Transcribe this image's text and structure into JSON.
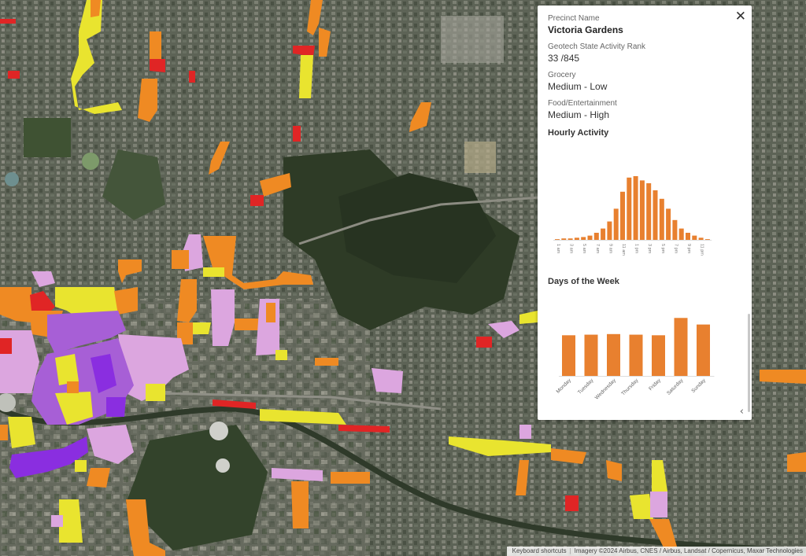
{
  "panel": {
    "close_symbol": "✕",
    "fields": [
      {
        "label": "Precinct Name",
        "value": "Victoria Gardens"
      },
      {
        "label": "Geotech State Activity Rank",
        "value": "33 /845"
      },
      {
        "label": "Grocery",
        "value": "Medium - Low"
      },
      {
        "label": "Food/Entertainment",
        "value": "Medium - High"
      }
    ],
    "hourly_title": "Hourly Activity",
    "days_title": "Days of the Week",
    "collapse_symbol": "‹"
  },
  "colors": {
    "bar": "#e8802f",
    "zone_red": "#e02525",
    "zone_orange": "#ef8a23",
    "zone_yellow": "#e9e42f",
    "zone_pink": "#dca6df",
    "zone_purple": "#a75fd6",
    "zone_violet": "#8a2ee0"
  },
  "attribution": {
    "shortcuts": "Keyboard shortcuts",
    "imagery": "Imagery ©2024 Airbus, CNES / Airbus, Landsat / Copernicus, Maxar Technologies"
  },
  "chart_data": [
    {
      "type": "bar",
      "title": "Hourly Activity",
      "categories": [
        "1 am",
        "2 am",
        "3 am",
        "4 am",
        "5 am",
        "6 am",
        "7 am",
        "8 am",
        "9 am",
        "10 am",
        "11 am",
        "12 pm",
        "1 pm",
        "2 pm",
        "3 pm",
        "4 pm",
        "5 pm",
        "6 pm",
        "7 pm",
        "8 pm",
        "9 pm",
        "10 pm",
        "11 pm",
        "12 am"
      ],
      "tick_labels": [
        "1 am",
        "3 am",
        "5 am",
        "7 am",
        "9 am",
        "11 am",
        "1 pm",
        "3 pm",
        "5 pm",
        "7 pm",
        "9 pm",
        "11 pm"
      ],
      "values": [
        1,
        2,
        2,
        3,
        4,
        6,
        10,
        16,
        26,
        44,
        68,
        88,
        90,
        84,
        80,
        70,
        58,
        44,
        28,
        16,
        10,
        6,
        3,
        1
      ],
      "ylim": [
        0,
        100
      ]
    },
    {
      "type": "bar",
      "title": "Days of the Week",
      "categories": [
        "Monday",
        "Tuesday",
        "Wednesday",
        "Thursday",
        "Friday",
        "Saturday",
        "Sunday"
      ],
      "values": [
        68,
        69,
        70,
        69,
        68,
        97,
        86
      ],
      "ylim": [
        0,
        100
      ]
    }
  ]
}
